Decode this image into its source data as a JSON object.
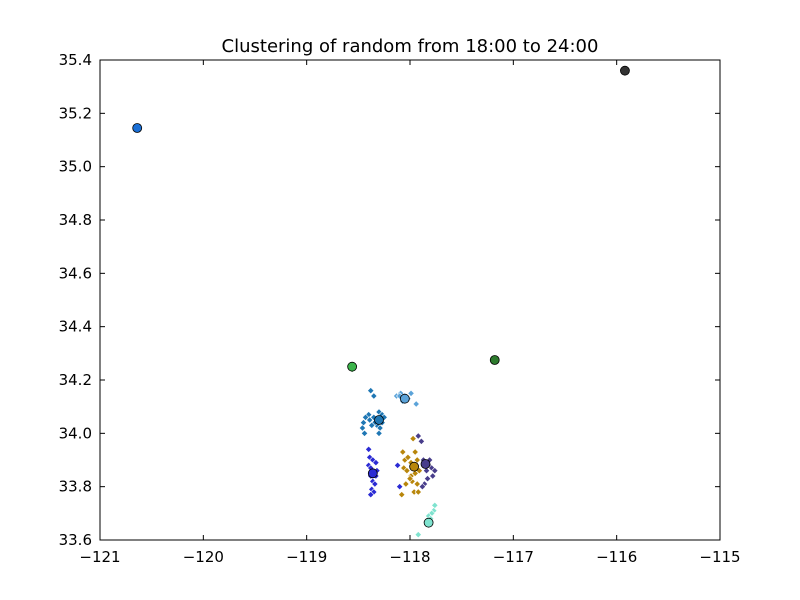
{
  "chart_data": {
    "type": "scatter",
    "title": "Clustering of random from 18:00 to 24:00",
    "xlabel": "",
    "ylabel": "",
    "xlim": [
      -121,
      -115
    ],
    "ylim": [
      33.6,
      35.4
    ],
    "xticks": [
      -121,
      -120,
      -119,
      -118,
      -117,
      -116,
      -115
    ],
    "xtick_labels": [
      "−121",
      "−120",
      "−119",
      "−118",
      "−117",
      "−116",
      "−115"
    ],
    "yticks": [
      33.6,
      33.8,
      34.0,
      34.2,
      34.4,
      34.6,
      34.8,
      35.0,
      35.2,
      35.4
    ],
    "ytick_labels": [
      "33.6",
      "33.8",
      "34.0",
      "34.2",
      "34.4",
      "34.6",
      "34.8",
      "35.0",
      "35.2",
      "35.4"
    ],
    "grid": false,
    "series": [
      {
        "color": "#1f77b4",
        "centroid": [
          -118.3,
          34.05
        ],
        "points": [
          [
            -118.38,
            34.16
          ],
          [
            -118.35,
            34.14
          ],
          [
            -118.4,
            34.07
          ],
          [
            -118.43,
            34.06
          ],
          [
            -118.35,
            34.06
          ],
          [
            -118.3,
            34.08
          ],
          [
            -118.27,
            34.07
          ],
          [
            -118.25,
            34.06
          ],
          [
            -118.45,
            34.04
          ],
          [
            -118.46,
            34.02
          ],
          [
            -118.44,
            34.0
          ],
          [
            -118.32,
            34.03
          ],
          [
            -118.29,
            34.02
          ],
          [
            -118.27,
            34.04
          ],
          [
            -118.3,
            34.0
          ],
          [
            -118.34,
            34.04
          ],
          [
            -118.39,
            34.05
          ],
          [
            -118.37,
            34.03
          ]
        ]
      },
      {
        "color": "#5ba3d9",
        "centroid": [
          -118.05,
          34.13
        ],
        "points": [
          [
            -118.13,
            34.14
          ],
          [
            -118.09,
            34.15
          ],
          [
            -118.05,
            34.14
          ],
          [
            -117.99,
            34.15
          ],
          [
            -118.02,
            34.13
          ],
          [
            -118.07,
            34.12
          ],
          [
            -117.94,
            34.11
          ],
          [
            -118.1,
            34.14
          ]
        ]
      },
      {
        "color": "#2b2bd4",
        "centroid": [
          -118.36,
          33.85
        ],
        "points": [
          [
            -118.4,
            33.94
          ],
          [
            -118.39,
            33.91
          ],
          [
            -118.4,
            33.88
          ],
          [
            -118.38,
            33.87
          ],
          [
            -118.36,
            33.9
          ],
          [
            -118.33,
            33.89
          ],
          [
            -118.32,
            33.86
          ],
          [
            -118.38,
            33.84
          ],
          [
            -118.36,
            33.82
          ],
          [
            -118.34,
            33.81
          ],
          [
            -118.37,
            33.79
          ],
          [
            -118.35,
            33.78
          ],
          [
            -118.38,
            33.77
          ],
          [
            -118.33,
            33.84
          ],
          [
            -118.12,
            33.88
          ],
          [
            -118.1,
            33.8
          ]
        ]
      },
      {
        "color": "#b8860b",
        "centroid": [
          -117.96,
          33.875
        ],
        "points": [
          [
            -118.07,
            33.93
          ],
          [
            -118.05,
            33.9
          ],
          [
            -118.02,
            33.91
          ],
          [
            -117.97,
            33.98
          ],
          [
            -117.95,
            33.93
          ],
          [
            -117.93,
            33.9
          ],
          [
            -118.06,
            33.87
          ],
          [
            -118.03,
            33.86
          ],
          [
            -117.99,
            33.84
          ],
          [
            -117.95,
            33.85
          ],
          [
            -117.91,
            33.86
          ],
          [
            -117.98,
            33.82
          ],
          [
            -118.04,
            33.81
          ],
          [
            -118.0,
            33.83
          ],
          [
            -117.93,
            33.81
          ],
          [
            -117.96,
            33.78
          ],
          [
            -117.92,
            33.78
          ],
          [
            -118.08,
            33.77
          ],
          [
            -117.99,
            33.89
          ]
        ]
      },
      {
        "color": "#483d8b",
        "centroid": [
          -117.85,
          33.885
        ],
        "points": [
          [
            -117.92,
            33.99
          ],
          [
            -117.89,
            33.97
          ],
          [
            -117.87,
            33.9
          ],
          [
            -117.82,
            33.88
          ],
          [
            -117.79,
            33.87
          ],
          [
            -117.76,
            33.86
          ],
          [
            -117.78,
            33.84
          ],
          [
            -117.83,
            33.83
          ],
          [
            -117.86,
            33.81
          ],
          [
            -117.88,
            33.8
          ],
          [
            -117.84,
            33.86
          ],
          [
            -117.81,
            33.9
          ]
        ]
      },
      {
        "color": "#7fe3cf",
        "centroid": [
          -117.82,
          33.665
        ],
        "points": [
          [
            -117.76,
            33.73
          ],
          [
            -117.77,
            33.71
          ],
          [
            -117.79,
            33.7
          ],
          [
            -117.82,
            33.69
          ],
          [
            -117.8,
            33.68
          ],
          [
            -117.92,
            33.62
          ]
        ]
      },
      {
        "color": "#3cb44b",
        "centroid": [
          -118.56,
          34.25
        ],
        "points": [
          [
            -118.56,
            34.24
          ]
        ]
      },
      {
        "color": "#2d7a2d",
        "centroid": [
          -117.18,
          34.275
        ],
        "points": []
      },
      {
        "color": "#1a6fd6",
        "centroid": [
          -120.64,
          35.145
        ],
        "points": []
      },
      {
        "color": "#333333",
        "centroid": [
          -115.92,
          35.36
        ],
        "points": []
      }
    ]
  }
}
